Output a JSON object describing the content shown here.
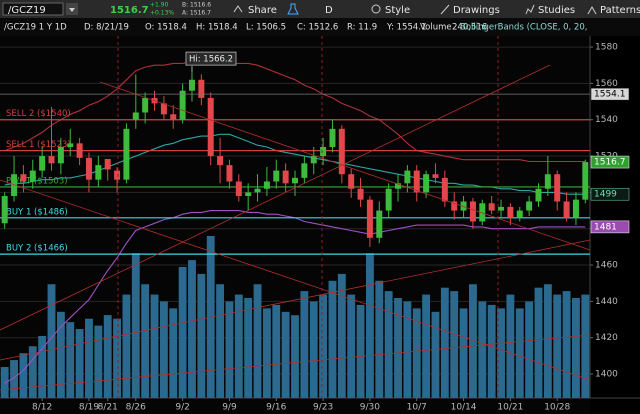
{
  "toolbar": {
    "symbol": "/GCZ19",
    "last": "1516.7",
    "change": "+1.90",
    "change_pct": "+0.13%",
    "bid": "B: 1516.6",
    "ask": "A: 1516.7",
    "buttons": [
      "Share",
      "D",
      "Style",
      "Drawings",
      "Studies",
      "Patterns"
    ]
  },
  "header": {
    "title": "/GCZ19 1 Y 1D",
    "fields": [
      "D: 8/21/19",
      "O: 1518.4",
      "H: 1518.4",
      "L: 1506.5",
      "C: 1512.6",
      "R: 11.9",
      "Y: 1554.1",
      "Volume",
      "240,516"
    ],
    "study": "BollingerBands (CLOSE, 0, 20,"
  },
  "chart_data": {
    "type": "candlestick",
    "categories": [
      null,
      null,
      null,
      null,
      "8/12",
      null,
      null,
      null,
      null,
      "8/19",
      null,
      "8/21",
      null,
      null,
      "8/26",
      null,
      null,
      null,
      null,
      "9/2",
      null,
      null,
      null,
      null,
      "9/9",
      null,
      null,
      null,
      null,
      "9/16",
      null,
      null,
      null,
      null,
      "9/23",
      null,
      null,
      null,
      null,
      "9/30",
      null,
      null,
      null,
      null,
      "10/7",
      null,
      null,
      null,
      null,
      "10/14",
      null,
      null,
      null,
      null,
      "10/21",
      null,
      null,
      null,
      null,
      "10/28",
      null,
      null,
      null
    ],
    "ohlc": [
      [
        1483,
        1500,
        1480,
        1498
      ],
      [
        1498,
        1520,
        1495,
        1510
      ],
      [
        1510,
        1515,
        1500,
        1506
      ],
      [
        1506,
        1518,
        1502,
        1512
      ],
      [
        1512,
        1525,
        1508,
        1520
      ],
      [
        1520,
        1547,
        1512,
        1516
      ],
      [
        1516,
        1530,
        1510,
        1525
      ],
      [
        1525,
        1535,
        1520,
        1527
      ],
      [
        1527,
        1530,
        1515,
        1519
      ],
      [
        1519,
        1522,
        1500,
        1507
      ],
      [
        1507,
        1520,
        1503,
        1515
      ],
      [
        1518.4,
        1518.4,
        1506.5,
        1512.6
      ],
      [
        1512,
        1514,
        1500,
        1507
      ],
      [
        1507,
        1538,
        1505,
        1535
      ],
      [
        1540,
        1565,
        1535,
        1544
      ],
      [
        1544,
        1555,
        1538,
        1552
      ],
      [
        1552,
        1556,
        1545,
        1549
      ],
      [
        1549,
        1553,
        1540,
        1543
      ],
      [
        1543,
        1548,
        1535,
        1540
      ],
      [
        1540,
        1560,
        1538,
        1556
      ],
      [
        1556,
        1566.2,
        1550,
        1562
      ],
      [
        1562,
        1565,
        1548,
        1552
      ],
      [
        1552,
        1555,
        1515,
        1520
      ],
      [
        1520,
        1530,
        1505,
        1515
      ],
      [
        1515,
        1518,
        1502,
        1506
      ],
      [
        1506,
        1510,
        1495,
        1498
      ],
      [
        1498,
        1505,
        1490,
        1500
      ],
      [
        1500,
        1510,
        1495,
        1502
      ],
      [
        1502,
        1514,
        1498,
        1506
      ],
      [
        1506,
        1518,
        1502,
        1512
      ],
      [
        1512,
        1516,
        1500,
        1505
      ],
      [
        1505,
        1512,
        1498,
        1508
      ],
      [
        1508,
        1520,
        1505,
        1516
      ],
      [
        1516,
        1525,
        1510,
        1520
      ],
      [
        1520,
        1530,
        1515,
        1525
      ],
      [
        1525,
        1540,
        1522,
        1535
      ],
      [
        1535,
        1537,
        1505,
        1510
      ],
      [
        1510,
        1513,
        1497,
        1502
      ],
      [
        1502,
        1508,
        1492,
        1496
      ],
      [
        1496,
        1498,
        1470,
        1475
      ],
      [
        1475,
        1495,
        1472,
        1490
      ],
      [
        1490,
        1505,
        1486,
        1502
      ],
      [
        1502,
        1510,
        1495,
        1505
      ],
      [
        1505,
        1515,
        1500,
        1512
      ],
      [
        1512,
        1515,
        1495,
        1500
      ],
      [
        1500,
        1512,
        1497,
        1510
      ],
      [
        1510,
        1516,
        1505,
        1508
      ],
      [
        1508,
        1512,
        1492,
        1495
      ],
      [
        1495,
        1500,
        1485,
        1490
      ],
      [
        1490,
        1498,
        1486,
        1495
      ],
      [
        1495,
        1497,
        1480,
        1484
      ],
      [
        1484,
        1496,
        1482,
        1494
      ],
      [
        1494,
        1498,
        1488,
        1490
      ],
      [
        1490,
        1496,
        1486,
        1492
      ],
      [
        1492,
        1494,
        1482,
        1486
      ],
      [
        1486,
        1492,
        1484,
        1490
      ],
      [
        1490,
        1498,
        1487,
        1495
      ],
      [
        1495,
        1505,
        1492,
        1502
      ],
      [
        1502,
        1520,
        1498,
        1510
      ],
      [
        1510,
        1512,
        1490,
        1495
      ],
      [
        1495,
        1500,
        1484,
        1486
      ],
      [
        1486,
        1500,
        1482,
        1496
      ],
      [
        1496,
        1518,
        1494,
        1516.7
      ]
    ],
    "up_color": "#3dbb3d",
    "down_color": "#e2474c",
    "volume": [
      90000,
      110000,
      130000,
      150000,
      180000,
      330000,
      250000,
      220000,
      200000,
      230000,
      210000,
      240516,
      230000,
      300000,
      420000,
      330000,
      300000,
      280000,
      260000,
      380000,
      400000,
      360000,
      470000,
      330000,
      280000,
      300000,
      290000,
      330000,
      260000,
      270000,
      250000,
      240000,
      310000,
      280000,
      300000,
      340000,
      360000,
      300000,
      270000,
      420000,
      340000,
      310000,
      290000,
      280000,
      260000,
      300000,
      250000,
      320000,
      310000,
      260000,
      330000,
      280000,
      270000,
      260000,
      300000,
      260000,
      280000,
      320000,
      330000,
      300000,
      310000,
      290000,
      300000
    ],
    "volume_lim": [
      0,
      1050000
    ],
    "volume_color": "#2b6a8e",
    "series": [
      {
        "name": "UpperBand",
        "color": "#b0303e",
        "values": [
          1523,
          1525,
          1527,
          1530,
          1533,
          1537,
          1540,
          1543,
          1545,
          1548,
          1550,
          1553,
          1557,
          1562,
          1567,
          1569,
          1570,
          1570,
          1571,
          1571,
          1572,
          1572,
          1572,
          1572,
          1571,
          1571,
          1571,
          1570,
          1568,
          1566,
          1564,
          1562,
          1559,
          1557,
          1554,
          1552,
          1549,
          1547,
          1545,
          1542,
          1540,
          1536,
          1532,
          1527,
          1523,
          1522,
          1521,
          1520,
          1519,
          1518,
          1518,
          1518,
          1518,
          1518,
          1518,
          1518,
          1517,
          1517,
          1517,
          1517,
          1517,
          1517,
          1517
        ]
      },
      {
        "name": "MidLine",
        "color": "#2aa6a6",
        "values": [
          1504,
          1505,
          1505,
          1506,
          1507,
          1507,
          1508,
          1508,
          1509,
          1510,
          1512,
          1514,
          1516,
          1518,
          1520,
          1522,
          1524,
          1526,
          1527,
          1529,
          1530,
          1531,
          1531,
          1532,
          1532,
          1530,
          1528,
          1526,
          1525,
          1523,
          1522,
          1521,
          1520,
          1519,
          1518,
          1517,
          1516,
          1515,
          1514,
          1513,
          1512,
          1511,
          1510,
          1509,
          1508,
          1507,
          1506,
          1505,
          1505,
          1504,
          1504,
          1503,
          1503,
          1502,
          1502,
          1501,
          1501,
          1500,
          1500,
          1500,
          1499,
          1499,
          1499
        ]
      },
      {
        "name": "LowerBand",
        "color": "#a04fc4",
        "values": [
          1395,
          1398,
          1402,
          1408,
          1414,
          1420,
          1426,
          1431,
          1436,
          1441,
          1449,
          1457,
          1464,
          1472,
          1479,
          1481,
          1483,
          1485,
          1486,
          1488,
          1489,
          1489,
          1490,
          1490,
          1490,
          1490,
          1489,
          1489,
          1488,
          1488,
          1487,
          1486,
          1484,
          1483,
          1482,
          1481,
          1480,
          1479,
          1478,
          1477,
          1478,
          1479,
          1480,
          1481,
          1482,
          1482,
          1482,
          1482,
          1482,
          1482,
          1481,
          1481,
          1480,
          1480,
          1480,
          1480,
          1480,
          1481,
          1481,
          1481,
          1481,
          1481,
          1481
        ]
      }
    ],
    "levels": [
      {
        "label": "SELL 2 ($1540)",
        "value": 1540,
        "color": "#d04040"
      },
      {
        "label": "SELL 1 ($1523)",
        "value": 1523,
        "color": "#d04040"
      },
      {
        "label": "PIVOT ($1503)",
        "value": 1503,
        "color": "#3aa83a"
      },
      {
        "label": "BUY 1 ($1486)",
        "value": 1486,
        "color": "#3fd8e2"
      },
      {
        "label": "BUY 2 ($1466)",
        "value": 1466,
        "color": "#3fd8e2"
      }
    ],
    "price_markers": [
      {
        "value": 1554.1,
        "color": "#d8d8d8",
        "text_color": "#000000"
      },
      {
        "value": 1516.7,
        "color": "#2f9f2f",
        "text_color": "#ffffff"
      },
      {
        "value": 1499,
        "color": "#0c1a16",
        "text_color": "#6fe0b0"
      },
      {
        "value": 1481,
        "color": "#9a4bb0",
        "text_color": "#ffffff"
      }
    ],
    "hi_label": "Hi: 1566.2",
    "ylim": [
      1386.8,
      1586.1
    ],
    "yticks": [
      1400,
      1420,
      1440,
      1460,
      1480,
      1500,
      1520,
      1540,
      1560,
      1580
    ],
    "grid": true
  }
}
